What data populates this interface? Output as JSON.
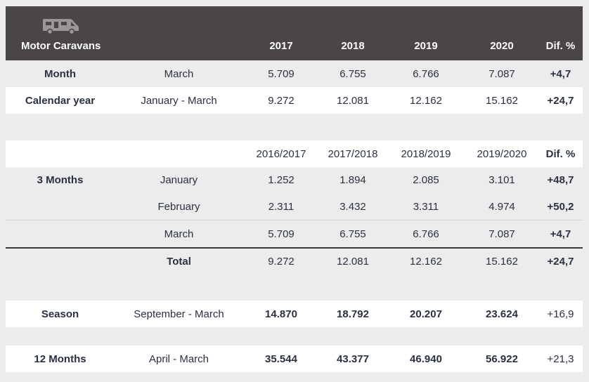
{
  "header": {
    "title": "Motor Caravans",
    "years": [
      "2017",
      "2018",
      "2019",
      "2020"
    ],
    "diff": "Dif. %",
    "icon": "motorhome-icon"
  },
  "month_row": {
    "label": "Month",
    "period": "March",
    "values": [
      "5.709",
      "6.755",
      "6.766",
      "7.087"
    ],
    "diff": "+4,7"
  },
  "calendar_row": {
    "label": "Calendar year",
    "period": "January - March",
    "values": [
      "9.272",
      "12.081",
      "12.162",
      "15.162"
    ],
    "diff": "+24,7"
  },
  "seasons_header": {
    "years": [
      "2016/2017",
      "2017/2018",
      "2018/2019",
      "2019/2020"
    ],
    "diff": "Dif. %"
  },
  "three_months": {
    "label": "3 Months",
    "rows": [
      {
        "period": "January",
        "values": [
          "1.252",
          "1.894",
          "2.085",
          "3.101"
        ],
        "diff": "+48,7"
      },
      {
        "period": "February",
        "values": [
          "2.311",
          "3.432",
          "3.311",
          "4.974"
        ],
        "diff": "+50,2"
      },
      {
        "period": "March",
        "values": [
          "5.709",
          "6.755",
          "6.766",
          "7.087"
        ],
        "diff": "+4,7"
      }
    ],
    "total": {
      "period": "Total",
      "values": [
        "9.272",
        "12.081",
        "12.162",
        "15.162"
      ],
      "diff": "+24,7"
    }
  },
  "season_row": {
    "label": "Season",
    "period": "September - March",
    "values": [
      "14.870",
      "18.792",
      "20.207",
      "23.624"
    ],
    "diff": "+16,9"
  },
  "twelve_row": {
    "label": "12 Months",
    "period": "April - March",
    "values": [
      "35.544",
      "43.377",
      "46.940",
      "56.922"
    ],
    "diff": "+21,3"
  }
}
